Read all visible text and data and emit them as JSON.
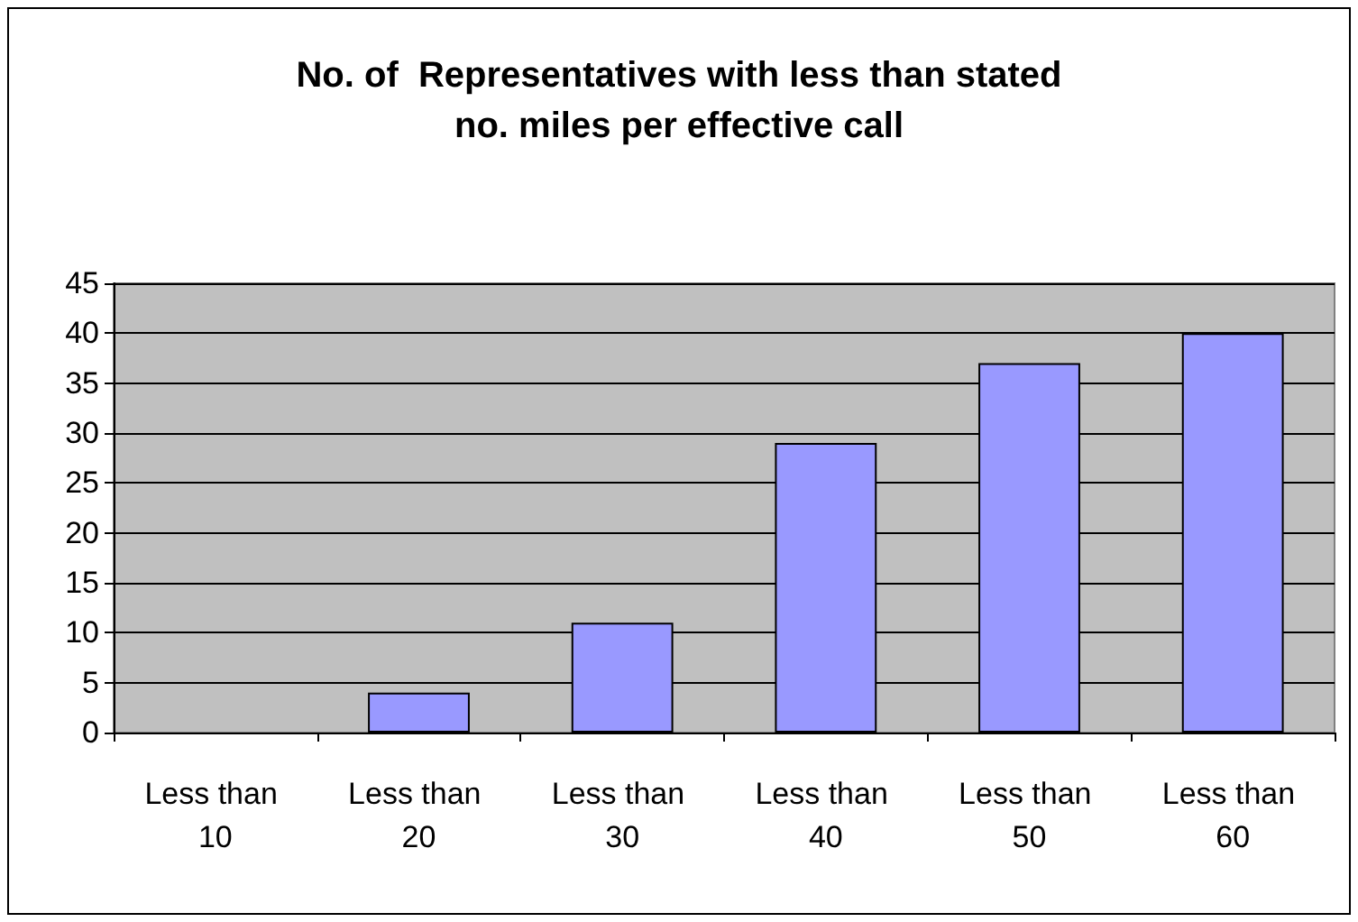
{
  "chart_data": {
    "type": "bar",
    "title": "No. of  Representatives with less than stated\nno. miles per effective call",
    "categories": [
      "Less than 10",
      "Less than 20",
      "Less than 30",
      "Less than 40",
      "Less than 50",
      "Less than 60"
    ],
    "values": [
      0,
      4,
      11,
      29,
      37,
      40
    ],
    "color": "#9999ff",
    "ylim": [
      0,
      45
    ],
    "yticks": [
      0,
      5,
      10,
      15,
      20,
      25,
      30,
      35,
      40,
      45
    ],
    "grid": "y"
  }
}
